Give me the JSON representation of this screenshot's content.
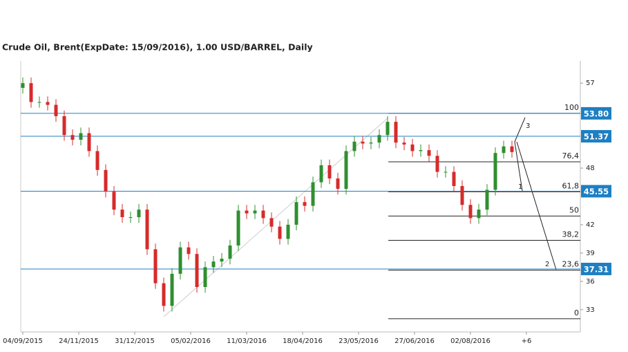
{
  "chart_data": {
    "type": "candlestick",
    "title": "Crude Oil, Brent(ExpDate: 15/09/2016), 1.00 USD/BARREL, Daily",
    "x": [
      0,
      4,
      8,
      12,
      16,
      20,
      24,
      28,
      32,
      36,
      40,
      44,
      48,
      52,
      56,
      60,
      64,
      68,
      72,
      76,
      80,
      84,
      88,
      92,
      96,
      100,
      104,
      108,
      112,
      116,
      120,
      124,
      128,
      132,
      136,
      140,
      144,
      148,
      152,
      156,
      160,
      164,
      168,
      172,
      176,
      180,
      184,
      188,
      192,
      196,
      200,
      204,
      208,
      212,
      216,
      220,
      224,
      228,
      232,
      236
    ],
    "open": [
      56.5,
      57.0,
      55.0,
      55.0,
      54.7,
      53.5,
      51.5,
      51.0,
      51.7,
      49.8,
      47.8,
      45.5,
      43.6,
      42.8,
      42.8,
      43.6,
      39.4,
      35.8,
      33.4,
      36.8,
      39.6,
      38.9,
      35.4,
      37.5,
      38.1,
      38.4,
      39.8,
      43.5,
      43.2,
      43.5,
      42.7,
      41.8,
      40.5,
      42.0,
      44.4,
      44.0,
      46.5,
      48.3,
      46.9,
      45.8,
      49.8,
      50.8,
      50.6,
      50.7,
      51.5,
      52.9,
      50.7,
      50.5,
      49.8,
      49.9,
      49.3,
      47.6,
      47.6,
      46.1,
      44.1,
      42.7,
      43.6,
      45.7,
      49.6,
      50.3
    ],
    "high": [
      57.6,
      57.6,
      55.6,
      55.6,
      55.3,
      54.1,
      52.1,
      52.3,
      52.3,
      50.4,
      48.4,
      46.1,
      44.2,
      43.4,
      44.2,
      44.2,
      40.0,
      36.4,
      37.4,
      40.2,
      40.2,
      39.5,
      38.1,
      38.7,
      39.0,
      40.4,
      44.1,
      44.1,
      44.1,
      44.1,
      43.3,
      42.4,
      42.6,
      45.0,
      45.0,
      47.1,
      48.9,
      48.9,
      47.5,
      50.4,
      51.4,
      51.4,
      51.3,
      52.1,
      53.5,
      53.5,
      51.3,
      51.1,
      50.5,
      50.5,
      49.9,
      48.2,
      48.2,
      46.7,
      44.7,
      44.2,
      46.3,
      50.2,
      50.9,
      50.9
    ],
    "low": [
      55.9,
      54.4,
      54.4,
      54.1,
      52.9,
      50.9,
      50.4,
      50.4,
      49.2,
      47.2,
      44.9,
      43.0,
      42.2,
      42.2,
      42.2,
      38.8,
      35.2,
      32.8,
      32.8,
      36.2,
      38.3,
      34.8,
      34.8,
      36.9,
      37.5,
      37.8,
      39.2,
      42.6,
      42.6,
      42.1,
      41.2,
      39.9,
      39.9,
      41.4,
      43.4,
      43.4,
      45.9,
      46.3,
      45.2,
      45.2,
      49.2,
      50.0,
      50.0,
      50.1,
      50.9,
      50.1,
      49.9,
      49.2,
      49.2,
      48.7,
      47.0,
      47.0,
      45.5,
      43.5,
      42.1,
      42.1,
      43.0,
      45.1,
      49.0,
      49.1
    ],
    "close": [
      57.0,
      55.0,
      55.0,
      54.7,
      53.5,
      51.5,
      51.0,
      51.7,
      49.8,
      47.8,
      45.5,
      43.6,
      42.8,
      42.8,
      43.6,
      39.4,
      35.8,
      33.4,
      36.8,
      39.6,
      38.9,
      35.4,
      37.5,
      38.1,
      38.4,
      39.8,
      43.5,
      43.2,
      43.5,
      42.7,
      41.8,
      40.5,
      42.0,
      44.4,
      44.0,
      46.5,
      48.3,
      46.9,
      45.8,
      49.8,
      50.8,
      50.6,
      50.7,
      51.5,
      52.9,
      50.7,
      50.5,
      49.8,
      49.9,
      49.3,
      47.6,
      47.6,
      46.1,
      44.1,
      42.7,
      43.6,
      45.7,
      49.6,
      50.3,
      49.7
    ],
    "up_color": "#2f8f2f",
    "down_color": "#d62b2b",
    "xlim": [
      -1,
      269
    ],
    "xticks": [
      {
        "value": 0,
        "label": "04/09/2015"
      },
      {
        "value": 27,
        "label": "24/11/2015"
      },
      {
        "value": 54,
        "label": "31/12/2015"
      },
      {
        "value": 81,
        "label": "05/02/2016"
      },
      {
        "value": 108,
        "label": "11/03/2016"
      },
      {
        "value": 135,
        "label": "18/04/2016"
      },
      {
        "value": 162,
        "label": "23/05/2016"
      },
      {
        "value": 189,
        "label": "27/06/2016"
      },
      {
        "value": 216,
        "label": "02/08/2016"
      },
      {
        "value": 243,
        "label": "+6"
      }
    ],
    "ylim": [
      30.64,
      59.36
    ],
    "yticks": [
      33,
      36,
      39,
      42,
      48,
      57
    ],
    "price_lines": [
      {
        "value": 53.8,
        "label": "53.80"
      },
      {
        "value": 51.37,
        "label": "51.37"
      },
      {
        "value": 45.55,
        "label": "45.55"
      },
      {
        "value": 37.31,
        "label": "37.31"
      }
    ],
    "price_line_color": "#1e7fc2",
    "fibonacci": [
      {
        "value": 53.8,
        "label": "100"
      },
      {
        "value": 48.66,
        "label": "76,4"
      },
      {
        "value": 45.49,
        "label": "61,8"
      },
      {
        "value": 42.92,
        "label": "50"
      },
      {
        "value": 40.35,
        "label": "38,2"
      },
      {
        "value": 37.18,
        "label": "23,6"
      },
      {
        "value": 32.04,
        "label": "0"
      }
    ],
    "wave_labels": [
      "1",
      "2",
      "3"
    ]
  }
}
